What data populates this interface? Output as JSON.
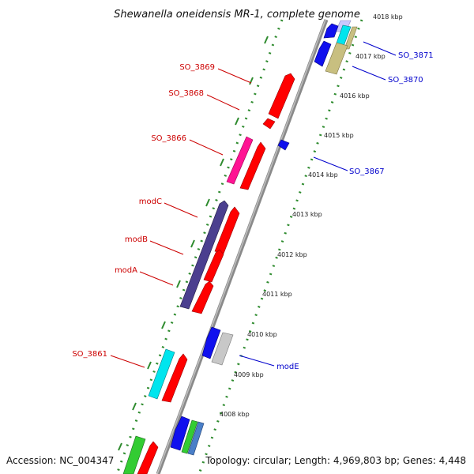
{
  "title": "Shewanella oneidensis MR-1, complete genome",
  "footer": {
    "accession": "Accession: NC_004347",
    "topology": "Topology: circular; Length: 4,969,803 bp; Genes: 4,448"
  },
  "colors": {
    "forward_label": "#cc0000",
    "reverse_label": "#0000cc",
    "backbone": "#8a8a8a",
    "tick_dots": "#2e8b2e"
  },
  "scale_labels": [
    "4018 kbp",
    "4017 kbp",
    "4016 kbp",
    "4015 kbp",
    "4014 kbp",
    "4013 kbp",
    "4012 kbp",
    "4011 kbp",
    "4010 kbp",
    "4009 kbp",
    "4008 kbp"
  ],
  "labels_left": [
    {
      "text": "SO_3869",
      "color": "#cc0000"
    },
    {
      "text": "SO_3868",
      "color": "#cc0000"
    },
    {
      "text": "SO_3866",
      "color": "#cc0000"
    },
    {
      "text": "modC",
      "color": "#cc0000"
    },
    {
      "text": "modB",
      "color": "#cc0000"
    },
    {
      "text": "modA",
      "color": "#cc0000"
    },
    {
      "text": "SO_3861",
      "color": "#cc0000"
    }
  ],
  "labels_right": [
    {
      "text": "SO_3871",
      "color": "#0000cc"
    },
    {
      "text": "SO_3870",
      "color": "#0000cc"
    },
    {
      "text": "SO_3867",
      "color": "#0000cc"
    },
    {
      "text": "modE",
      "color": "#0000cc"
    }
  ],
  "genes": [
    {
      "name": "forward-orf-red",
      "color": "#ff0000"
    },
    {
      "name": "forward-orf-magenta",
      "color": "#ff1493"
    },
    {
      "name": "forward-orf-purple",
      "color": "#4b3f8f"
    },
    {
      "name": "forward-orf-cyan",
      "color": "#00e5ee"
    },
    {
      "name": "forward-orf-green",
      "color": "#33cc33"
    },
    {
      "name": "reverse-orf-blue",
      "color": "#1010ee"
    },
    {
      "name": "reverse-orf-gray",
      "color": "#c8c8c8"
    },
    {
      "name": "reverse-orf-khaki",
      "color": "#c8bf80"
    },
    {
      "name": "reverse-orf-lavender",
      "color": "#c8c8ff"
    },
    {
      "name": "reverse-orf-steelblue",
      "color": "#4a7fc8"
    }
  ]
}
